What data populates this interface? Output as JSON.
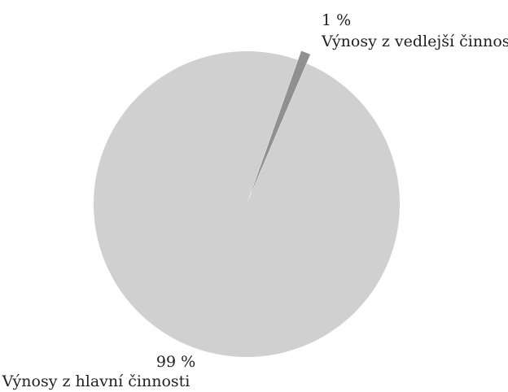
{
  "chart_data": {
    "type": "pie",
    "slices": [
      {
        "label": "Výnosy z hlavní činnosti",
        "value_label": "99 %",
        "value": 99,
        "color": "#d0d0d0"
      },
      {
        "label": "Výnosy z vedlejší činnosti",
        "value_label": "1 %",
        "value": 1,
        "color": "#909090",
        "exploded": true
      }
    ],
    "legend": "none",
    "labels": "outside"
  }
}
